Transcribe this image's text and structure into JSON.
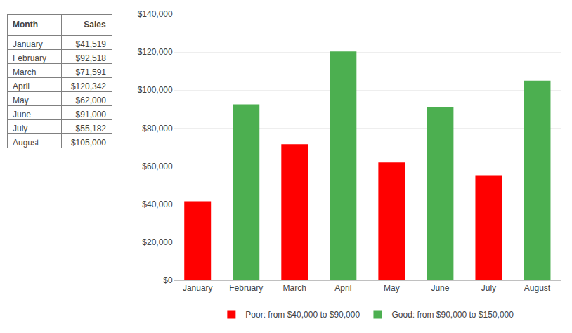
{
  "chart_data": [
    {
      "type": "table",
      "columns": [
        "Month",
        "Sales"
      ],
      "rows": [
        [
          "January",
          "$41,519"
        ],
        [
          "February",
          "$92,518"
        ],
        [
          "March",
          "$71,591"
        ],
        [
          "April",
          "$120,342"
        ],
        [
          "May",
          "$62,000"
        ],
        [
          "June",
          "$91,000"
        ],
        [
          "July",
          "$55,182"
        ],
        [
          "August",
          "$105,000"
        ]
      ]
    },
    {
      "type": "bar",
      "categories": [
        "January",
        "February",
        "March",
        "April",
        "May",
        "June",
        "July",
        "August"
      ],
      "series": [
        {
          "name": "Poor: from $40,000 to $90,000",
          "color": "#FF0000",
          "values": [
            41519,
            null,
            71591,
            null,
            62000,
            null,
            55182,
            null
          ]
        },
        {
          "name": "Good: from $90,000 to $150,000",
          "color": "#4CAF50",
          "values": [
            null,
            92518,
            null,
            120342,
            null,
            91000,
            null,
            105000
          ]
        }
      ],
      "ylim": [
        0,
        140000
      ],
      "yticks": [
        {
          "value": 0,
          "label": "$0"
        },
        {
          "value": 20000,
          "label": "$20,000"
        },
        {
          "value": 40000,
          "label": "$40,000"
        },
        {
          "value": 60000,
          "label": "$60,000"
        },
        {
          "value": 80000,
          "label": "$80,000"
        },
        {
          "value": 100000,
          "label": "$100,000"
        },
        {
          "value": 120000,
          "label": "$120,000"
        },
        {
          "value": 140000,
          "label": "$140,000"
        }
      ],
      "grid": true,
      "legend": "bottom"
    }
  ]
}
